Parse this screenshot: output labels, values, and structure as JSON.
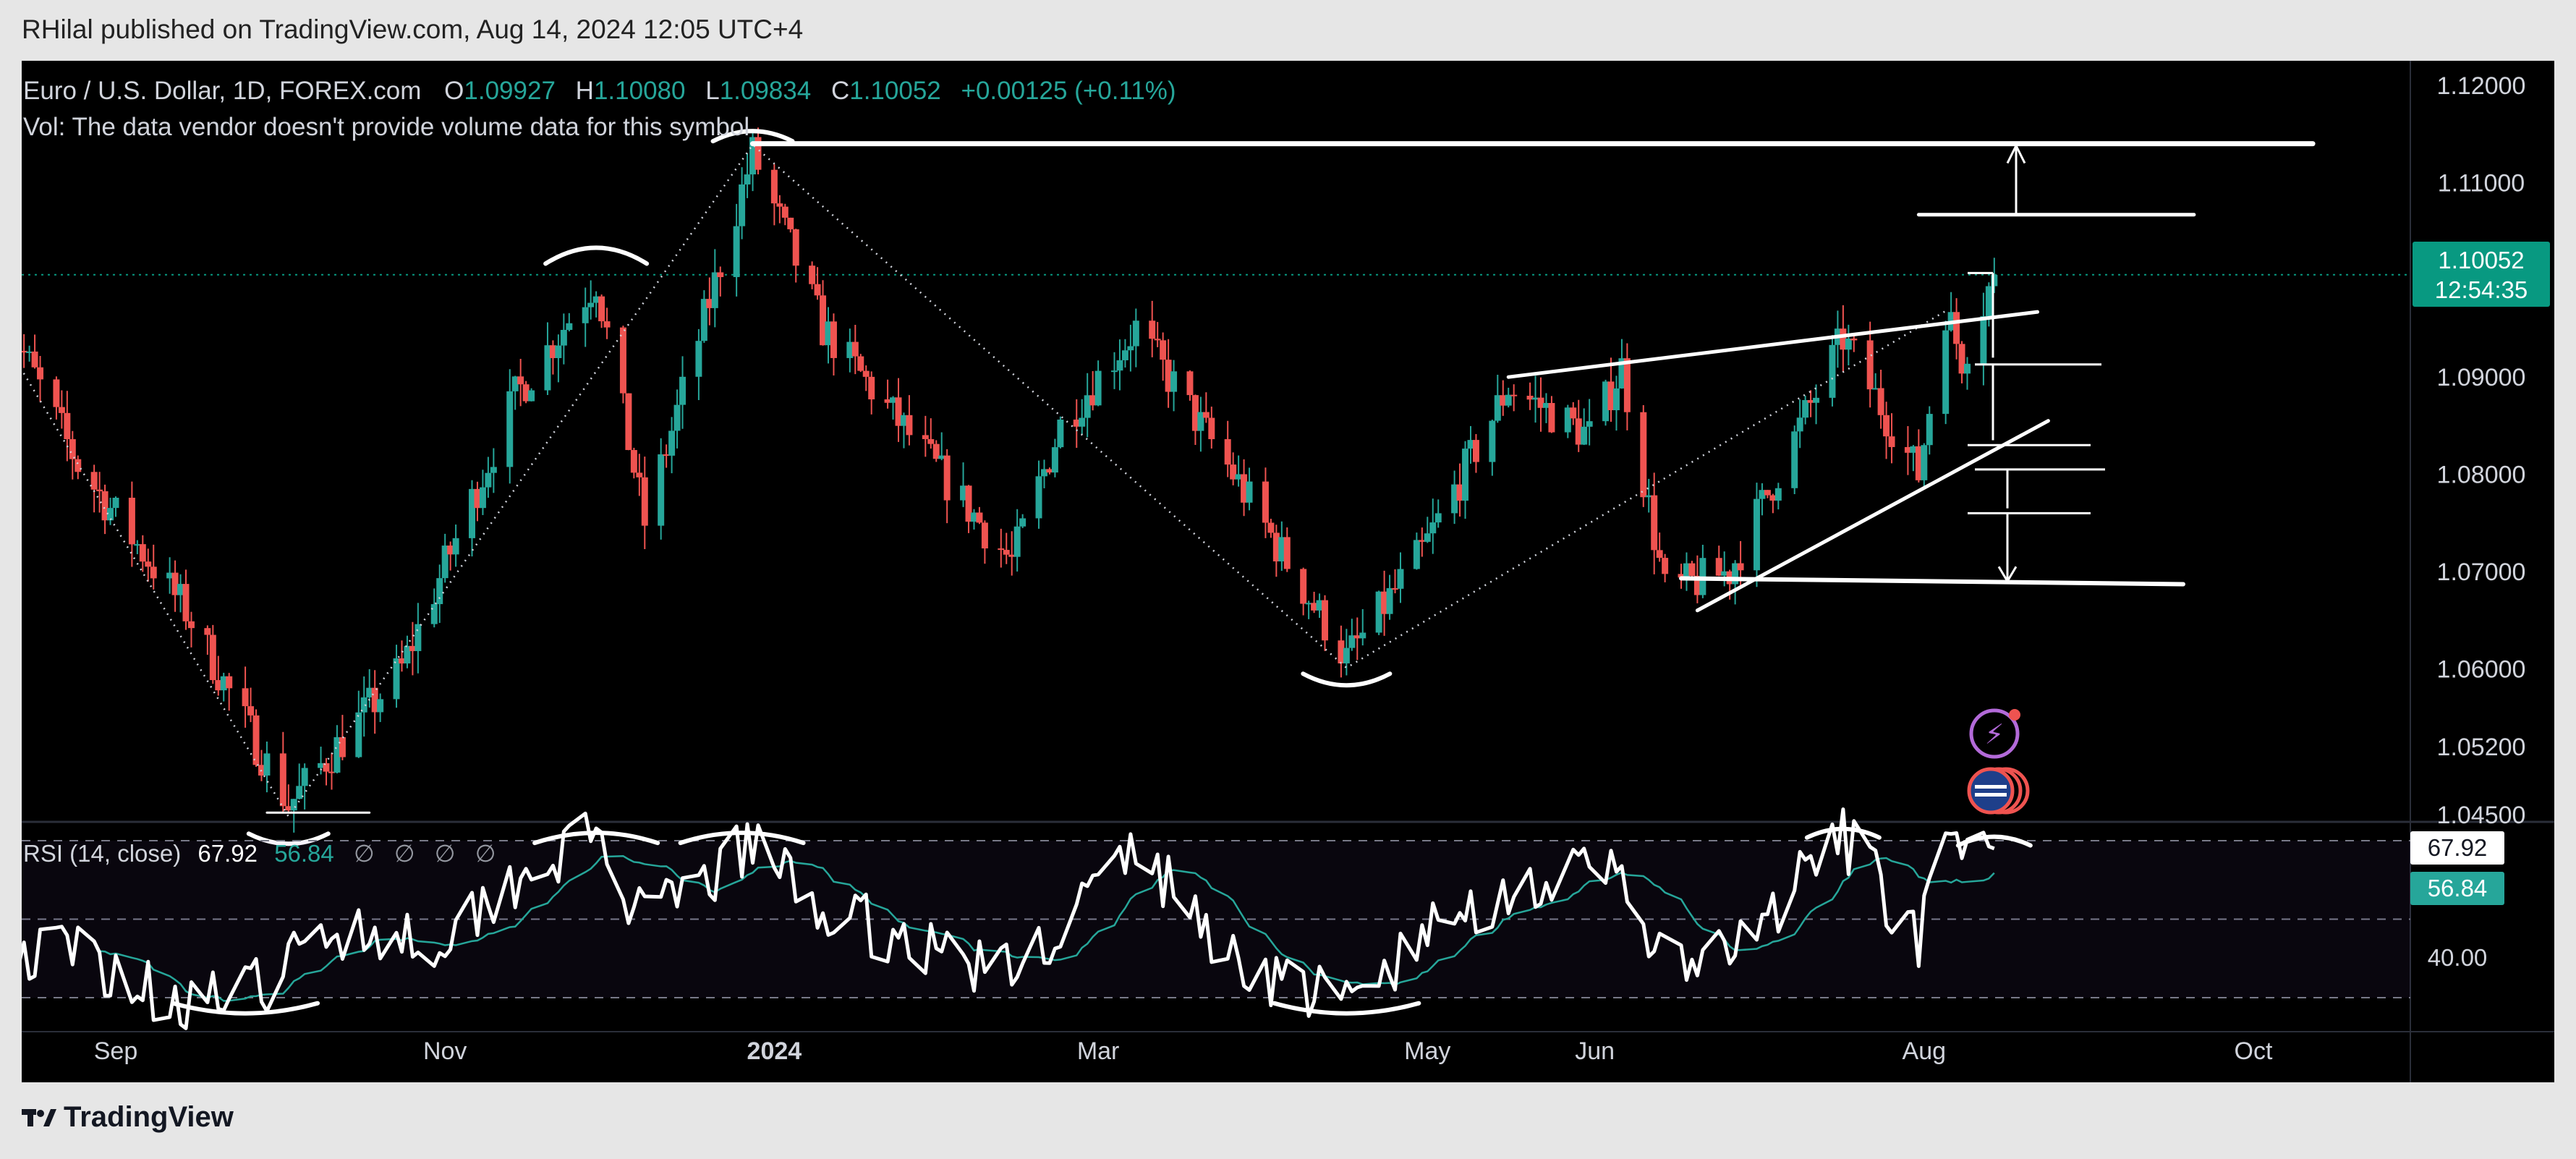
{
  "header": {
    "publisher": "RHilal published on TradingView.com, Aug 14, 2024 12:05 UTC+4"
  },
  "legend": {
    "symbol": "Euro / U.S. Dollar, 1D, FOREX.com",
    "open_label": "O",
    "open": "1.09927",
    "high_label": "H",
    "high": "1.10080",
    "low_label": "L",
    "low": "1.09834",
    "close_label": "C",
    "close": "1.10052",
    "change": "+0.00125 (+0.11%)",
    "volume_note": "Vol: The data vendor doesn't provide volume data for this symbol"
  },
  "price_badge": {
    "price": "1.10052",
    "countdown": "12:54:35"
  },
  "rsi": {
    "label": "RSI (14, close)",
    "value": "67.92",
    "ma": "56.84",
    "flags": [
      "∅",
      "∅",
      "∅",
      "∅"
    ],
    "level_label": "40.00"
  },
  "x_labels": [
    "Sep",
    "Nov",
    "2024",
    "Mar",
    "May",
    "Jun",
    "Aug",
    "Oct"
  ],
  "footer": {
    "brand": "TradingView"
  },
  "colors": {
    "up": "#26a69a",
    "down": "#ef5350",
    "badge": "#089981",
    "rsi_ma": "#26a69a"
  },
  "chart_data": {
    "type": "candlestick",
    "title": "Euro / U.S. Dollar, 1D, FOREX.com",
    "y_ticks": [
      1.12,
      1.11,
      1.09,
      1.08,
      1.07,
      1.06,
      1.052,
      1.045
    ],
    "y_tick_labels": [
      "1.12000",
      "1.11000",
      "1.09000",
      "1.08000",
      "1.07000",
      "1.06000",
      "1.05200",
      "1.04500"
    ],
    "ylim": [
      1.0435,
      1.1245
    ],
    "x_tick_labels": [
      "Sep",
      "Nov",
      "2024",
      "Mar",
      "May",
      "Jun",
      "Aug",
      "Oct"
    ],
    "last_price": 1.10052,
    "price_anchors": [
      [
        "2023-08-10",
        1.098
      ],
      [
        "2023-08-25",
        1.081
      ],
      [
        "2023-09-14",
        1.066
      ],
      [
        "2023-10-03",
        1.046
      ],
      [
        "2023-10-24",
        1.06
      ],
      [
        "2023-11-14",
        1.088
      ],
      [
        "2023-11-29",
        1.1
      ],
      [
        "2023-12-08",
        1.075
      ],
      [
        "2023-12-28",
        1.113
      ],
      [
        "2024-01-10",
        1.095
      ],
      [
        "2024-02-14",
        1.071
      ],
      [
        "2024-02-23",
        1.085
      ],
      [
        "2024-03-08",
        1.095
      ],
      [
        "2024-03-26",
        1.08
      ],
      [
        "2024-04-16",
        1.061
      ],
      [
        "2024-04-30",
        1.072
      ],
      [
        "2024-05-16",
        1.089
      ],
      [
        "2024-05-31",
        1.084
      ],
      [
        "2024-06-06",
        1.091
      ],
      [
        "2024-06-14",
        1.068
      ],
      [
        "2024-06-26",
        1.07
      ],
      [
        "2024-07-17",
        1.094
      ],
      [
        "2024-07-31",
        1.08
      ],
      [
        "2024-08-05",
        1.097
      ],
      [
        "2024-08-08",
        1.092
      ],
      [
        "2024-08-14",
        1.1005
      ]
    ],
    "rsi_series": {
      "name": "RSI (14, close)",
      "ylim": [
        15,
        85
      ],
      "levels": [
        70,
        50,
        30
      ],
      "anchors": [
        [
          "2023-08-10",
          40
        ],
        [
          "2023-08-25",
          42
        ],
        [
          "2023-09-10",
          30
        ],
        [
          "2023-09-25",
          30
        ],
        [
          "2023-10-12",
          48
        ],
        [
          "2023-10-31",
          45
        ],
        [
          "2023-11-15",
          62
        ],
        [
          "2023-11-29",
          71
        ],
        [
          "2023-12-08",
          48
        ],
        [
          "2023-12-28",
          69
        ],
        [
          "2024-01-10",
          52
        ],
        [
          "2024-02-14",
          36
        ],
        [
          "2024-03-08",
          68
        ],
        [
          "2024-03-26",
          40
        ],
        [
          "2024-04-16",
          28
        ],
        [
          "2024-05-03",
          48
        ],
        [
          "2024-05-16",
          58
        ],
        [
          "2024-06-06",
          62
        ],
        [
          "2024-06-14",
          38
        ],
        [
          "2024-06-26",
          40
        ],
        [
          "2024-07-17",
          71
        ],
        [
          "2024-07-31",
          45
        ],
        [
          "2024-08-05",
          65
        ],
        [
          "2024-08-14",
          68
        ]
      ]
    }
  }
}
